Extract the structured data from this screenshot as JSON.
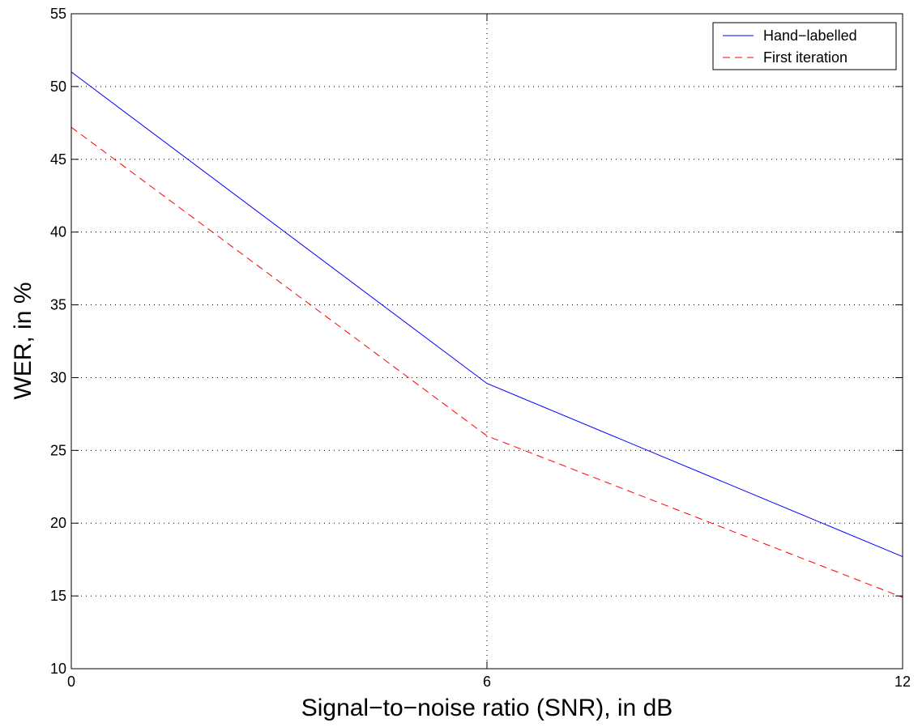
{
  "chart_data": {
    "type": "line",
    "title": "",
    "xlabel": "Signal−to−noise ratio (SNR), in dB",
    "ylabel": "WER, in %",
    "xlim": [
      0,
      12
    ],
    "ylim": [
      10,
      55
    ],
    "xticks": [
      0,
      6,
      12
    ],
    "yticks": [
      10,
      15,
      20,
      25,
      30,
      35,
      40,
      45,
      50,
      55
    ],
    "grid": true,
    "legend_position": "top-right",
    "x": [
      0,
      6,
      12
    ],
    "series": [
      {
        "name": "Hand−labelled",
        "values": [
          51.0,
          29.6,
          17.7
        ],
        "color": "#0000ff",
        "style": "solid"
      },
      {
        "name": "First iteration",
        "values": [
          47.2,
          26.0,
          14.9
        ],
        "color": "#ff0000",
        "style": "dashed"
      }
    ]
  }
}
